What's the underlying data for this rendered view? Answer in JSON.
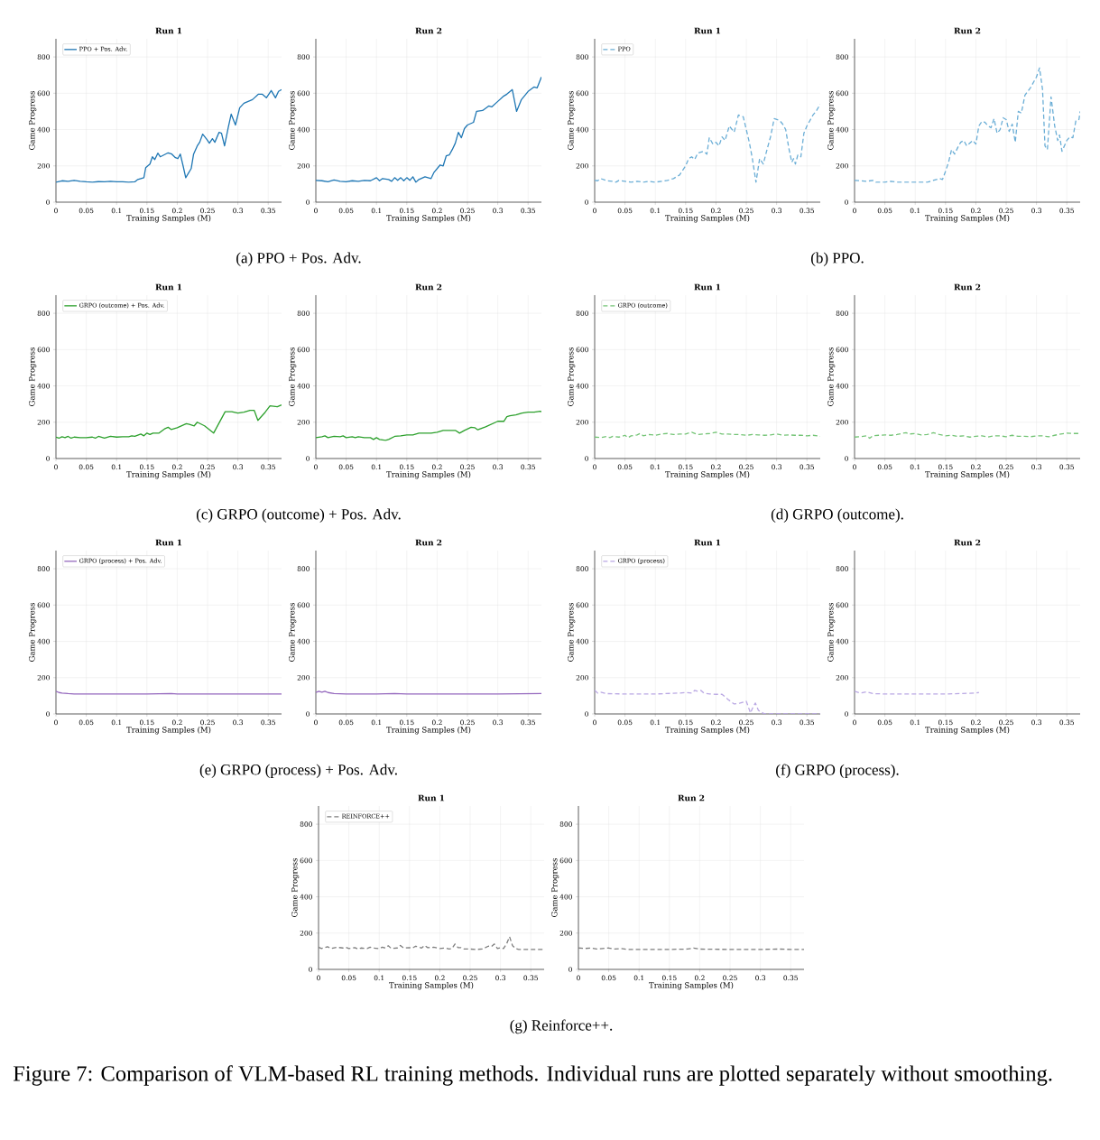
{
  "chart_data": [
    {
      "type": "line",
      "title": "Run 1",
      "xlabel": "Training Samples (M)",
      "ylabel": "Game Progress",
      "xlim": [
        0,
        0.372
      ],
      "ylim": [
        0,
        900
      ],
      "xticks": [
        0,
        0.05,
        0.1,
        0.15,
        0.2,
        0.25,
        0.3,
        0.35
      ],
      "yticks": [
        0,
        200,
        400,
        600,
        800
      ],
      "grid": true,
      "legend": "top left",
      "annotations": [
        "(a) PPO + Pos. Adv."
      ],
      "series": [
        {
          "name": "PPO + Pos. Adv.",
          "color": "#1f77b4",
          "line_style": "solid",
          "x": [
            0,
            0.01,
            0.02,
            0.03,
            0.04,
            0.05,
            0.06,
            0.07,
            0.08,
            0.09,
            0.1,
            0.11,
            0.12,
            0.13,
            0.135,
            0.14,
            0.145,
            0.148,
            0.155,
            0.159,
            0.163,
            0.168,
            0.172,
            0.185,
            0.191,
            0.197,
            0.201,
            0.205,
            0.21,
            0.214,
            0.223,
            0.227,
            0.233,
            0.237,
            0.242,
            0.249,
            0.253,
            0.258,
            0.262,
            0.269,
            0.273,
            0.278,
            0.284,
            0.289,
            0.296,
            0.303,
            0.31,
            0.324,
            0.334,
            0.34,
            0.347,
            0.355,
            0.362,
            0.367,
            0.372
          ],
          "values": [
            110,
            118,
            115,
            120,
            115,
            112,
            110,
            113,
            112,
            115,
            112,
            112,
            110,
            112,
            125,
            130,
            135,
            190,
            210,
            250,
            235,
            270,
            250,
            272,
            265,
            245,
            240,
            265,
            195,
            135,
            185,
            265,
            310,
            330,
            375,
            345,
            325,
            350,
            330,
            385,
            380,
            310,
            410,
            485,
            425,
            520,
            545,
            565,
            595,
            595,
            575,
            615,
            575,
            610,
            620
          ]
        }
      ]
    },
    {
      "type": "line",
      "title": "Run 2",
      "xlabel": "Training Samples (M)",
      "ylabel": "Game Progress",
      "xlim": [
        0,
        0.372
      ],
      "ylim": [
        0,
        900
      ],
      "xticks": [
        0,
        0.05,
        0.1,
        0.15,
        0.2,
        0.25,
        0.3,
        0.35
      ],
      "yticks": [
        0,
        200,
        400,
        600,
        800
      ],
      "grid": true,
      "series": [
        {
          "color": "#1f77b4",
          "line_style": "solid",
          "x": [
            0,
            0.01,
            0.02,
            0.03,
            0.04,
            0.05,
            0.06,
            0.07,
            0.08,
            0.09,
            0.1,
            0.105,
            0.11,
            0.12,
            0.125,
            0.13,
            0.135,
            0.14,
            0.145,
            0.15,
            0.155,
            0.16,
            0.165,
            0.17,
            0.18,
            0.19,
            0.195,
            0.2,
            0.205,
            0.21,
            0.215,
            0.22,
            0.225,
            0.23,
            0.235,
            0.24,
            0.245,
            0.25,
            0.26,
            0.265,
            0.275,
            0.285,
            0.29,
            0.3,
            0.31,
            0.315,
            0.324,
            0.331,
            0.339,
            0.35,
            0.36,
            0.365,
            0.372
          ],
          "values": [
            120,
            118,
            112,
            122,
            115,
            112,
            118,
            115,
            120,
            118,
            135,
            118,
            130,
            125,
            115,
            135,
            120,
            135,
            118,
            135,
            120,
            140,
            110,
            125,
            140,
            130,
            165,
            185,
            205,
            200,
            255,
            260,
            290,
            325,
            385,
            355,
            405,
            425,
            440,
            500,
            505,
            530,
            525,
            555,
            585,
            595,
            620,
            500,
            565,
            610,
            635,
            630,
            690
          ]
        }
      ]
    },
    {
      "type": "line",
      "title": "Run 1",
      "xlabel": "Training Samples (M)",
      "ylabel": "Game Progress",
      "xlim": [
        0,
        0.372
      ],
      "ylim": [
        0,
        900
      ],
      "xticks": [
        0,
        0.05,
        0.1,
        0.15,
        0.2,
        0.25,
        0.3,
        0.35
      ],
      "yticks": [
        0,
        200,
        400,
        600,
        800
      ],
      "grid": true,
      "legend": "top left",
      "annotations": [
        "(b) PPO."
      ],
      "series": [
        {
          "name": "PPO",
          "color": "#6baed6",
          "line_style": "dashed",
          "x": [
            0,
            0.005,
            0.01,
            0.02,
            0.03,
            0.035,
            0.04,
            0.05,
            0.06,
            0.07,
            0.08,
            0.09,
            0.1,
            0.11,
            0.12,
            0.13,
            0.14,
            0.15,
            0.155,
            0.16,
            0.165,
            0.17,
            0.18,
            0.185,
            0.189,
            0.195,
            0.2,
            0.205,
            0.21,
            0.215,
            0.222,
            0.23,
            0.237,
            0.245,
            0.25,
            0.255,
            0.26,
            0.266,
            0.272,
            0.278,
            0.285,
            0.29,
            0.296,
            0.305,
            0.31,
            0.315,
            0.32,
            0.325,
            0.328,
            0.331,
            0.335,
            0.34,
            0.345,
            0.35,
            0.355,
            0.36,
            0.365,
            0.372
          ],
          "values": [
            120,
            118,
            130,
            118,
            115,
            110,
            120,
            115,
            110,
            115,
            110,
            115,
            110,
            115,
            120,
            130,
            150,
            200,
            240,
            250,
            235,
            270,
            280,
            265,
            355,
            320,
            330,
            310,
            360,
            340,
            420,
            385,
            480,
            470,
            400,
            330,
            240,
            110,
            240,
            210,
            300,
            360,
            460,
            450,
            430,
            400,
            300,
            220,
            240,
            210,
            260,
            250,
            380,
            420,
            450,
            480,
            500,
            540
          ]
        }
      ]
    },
    {
      "type": "line",
      "title": "Run 2",
      "xlabel": "Training Samples (M)",
      "ylabel": "Game Progress",
      "xlim": [
        0,
        0.372
      ],
      "ylim": [
        0,
        900
      ],
      "xticks": [
        0,
        0.05,
        0.1,
        0.15,
        0.2,
        0.25,
        0.3,
        0.35
      ],
      "yticks": [
        0,
        200,
        400,
        600,
        800
      ],
      "grid": true,
      "series": [
        {
          "color": "#6baed6",
          "line_style": "dashed",
          "x": [
            0,
            0.01,
            0.02,
            0.03,
            0.035,
            0.05,
            0.06,
            0.07,
            0.1,
            0.12,
            0.13,
            0.14,
            0.145,
            0.15,
            0.155,
            0.16,
            0.165,
            0.17,
            0.175,
            0.18,
            0.185,
            0.195,
            0.2,
            0.205,
            0.21,
            0.215,
            0.22,
            0.225,
            0.23,
            0.235,
            0.24,
            0.245,
            0.25,
            0.255,
            0.26,
            0.265,
            0.27,
            0.275,
            0.281,
            0.29,
            0.3,
            0.305,
            0.31,
            0.314,
            0.318,
            0.324,
            0.33,
            0.335,
            0.338,
            0.342,
            0.35,
            0.355,
            0.36,
            0.365,
            0.37,
            0.372
          ],
          "values": [
            120,
            118,
            115,
            120,
            110,
            110,
            115,
            110,
            110,
            110,
            120,
            130,
            125,
            170,
            220,
            290,
            265,
            300,
            330,
            340,
            310,
            340,
            320,
            420,
            445,
            440,
            420,
            410,
            460,
            380,
            400,
            465,
            455,
            390,
            430,
            330,
            500,
            490,
            590,
            630,
            690,
            740,
            620,
            310,
            290,
            580,
            420,
            340,
            370,
            280,
            340,
            360,
            355,
            450,
            455,
            500
          ]
        }
      ]
    },
    {
      "type": "line",
      "title": "Run 1",
      "xlabel": "Training Samples (M)",
      "ylabel": "Game Progress",
      "xlim": [
        0,
        0.372
      ],
      "ylim": [
        0,
        900
      ],
      "xticks": [
        0,
        0.05,
        0.1,
        0.15,
        0.2,
        0.25,
        0.3,
        0.35
      ],
      "yticks": [
        0,
        200,
        400,
        600,
        800
      ],
      "grid": true,
      "legend": "top left",
      "annotations": [
        "(c) GRPO (outcome) + Pos. Adv."
      ],
      "series": [
        {
          "name": "GRPO (outcome) + Pos. Adv.",
          "color": "#2ca02c",
          "line_style": "solid",
          "x": [
            0,
            0.005,
            0.01,
            0.015,
            0.02,
            0.025,
            0.03,
            0.04,
            0.05,
            0.06,
            0.065,
            0.07,
            0.08,
            0.09,
            0.1,
            0.11,
            0.12,
            0.125,
            0.13,
            0.14,
            0.145,
            0.15,
            0.155,
            0.16,
            0.17,
            0.18,
            0.185,
            0.19,
            0.2,
            0.21,
            0.215,
            0.22,
            0.228,
            0.233,
            0.245,
            0.26,
            0.279,
            0.29,
            0.3,
            0.31,
            0.32,
            0.327,
            0.333,
            0.345,
            0.353,
            0.365,
            0.372
          ],
          "values": [
            118,
            112,
            120,
            115,
            122,
            112,
            118,
            115,
            115,
            118,
            112,
            122,
            112,
            122,
            118,
            120,
            120,
            125,
            122,
            135,
            125,
            140,
            132,
            140,
            140,
            165,
            172,
            160,
            170,
            185,
            192,
            188,
            180,
            200,
            180,
            140,
            258,
            258,
            250,
            255,
            265,
            265,
            210,
            255,
            290,
            285,
            295
          ]
        }
      ]
    },
    {
      "type": "line",
      "title": "Run 2",
      "xlabel": "Training Samples (M)",
      "ylabel": "Game Progress",
      "xlim": [
        0,
        0.372
      ],
      "ylim": [
        0,
        900
      ],
      "xticks": [
        0,
        0.05,
        0.1,
        0.15,
        0.2,
        0.25,
        0.3,
        0.35
      ],
      "yticks": [
        0,
        200,
        400,
        600,
        800
      ],
      "grid": true,
      "series": [
        {
          "color": "#2ca02c",
          "line_style": "solid",
          "x": [
            0,
            0.01,
            0.015,
            0.02,
            0.03,
            0.04,
            0.045,
            0.05,
            0.06,
            0.065,
            0.07,
            0.08,
            0.09,
            0.095,
            0.1,
            0.105,
            0.115,
            0.12,
            0.13,
            0.14,
            0.15,
            0.16,
            0.17,
            0.18,
            0.19,
            0.2,
            0.21,
            0.22,
            0.23,
            0.237,
            0.245,
            0.256,
            0.262,
            0.267,
            0.28,
            0.29,
            0.3,
            0.31,
            0.315,
            0.32,
            0.33,
            0.34,
            0.35,
            0.36,
            0.37,
            0.372
          ],
          "values": [
            115,
            120,
            125,
            115,
            122,
            120,
            125,
            115,
            120,
            115,
            120,
            115,
            115,
            105,
            115,
            105,
            100,
            105,
            122,
            125,
            130,
            130,
            140,
            140,
            140,
            145,
            155,
            155,
            155,
            140,
            155,
            172,
            170,
            158,
            175,
            190,
            205,
            205,
            230,
            235,
            240,
            250,
            255,
            255,
            260,
            258
          ]
        }
      ]
    },
    {
      "type": "line",
      "title": "Run 1",
      "xlabel": "Training Samples (M)",
      "ylabel": "Game Progress",
      "xlim": [
        0,
        0.372
      ],
      "ylim": [
        0,
        900
      ],
      "xticks": [
        0,
        0.05,
        0.1,
        0.15,
        0.2,
        0.25,
        0.3,
        0.35
      ],
      "yticks": [
        0,
        200,
        400,
        600,
        800
      ],
      "grid": true,
      "legend": "top left",
      "annotations": [
        "(d) GRPO (outcome)."
      ],
      "series": [
        {
          "name": "GRPO (outcome)",
          "color": "#74c476",
          "line_style": "dashed",
          "x": [
            0,
            0.01,
            0.02,
            0.025,
            0.03,
            0.04,
            0.05,
            0.055,
            0.06,
            0.07,
            0.075,
            0.08,
            0.09,
            0.1,
            0.11,
            0.12,
            0.13,
            0.14,
            0.15,
            0.16,
            0.17,
            0.18,
            0.19,
            0.2,
            0.21,
            0.22,
            0.23,
            0.24,
            0.25,
            0.26,
            0.27,
            0.28,
            0.29,
            0.3,
            0.31,
            0.32,
            0.33,
            0.34,
            0.35,
            0.36,
            0.372
          ],
          "values": [
            118,
            115,
            122,
            115,
            122,
            118,
            128,
            115,
            125,
            130,
            138,
            125,
            132,
            128,
            135,
            138,
            132,
            135,
            135,
            145,
            132,
            135,
            138,
            145,
            135,
            135,
            132,
            132,
            128,
            132,
            130,
            128,
            130,
            135,
            128,
            130,
            128,
            128,
            125,
            128,
            122
          ]
        }
      ]
    },
    {
      "type": "line",
      "title": "Run 2",
      "xlabel": "Training Samples (M)",
      "ylabel": "Game Progress",
      "xlim": [
        0,
        0.372
      ],
      "ylim": [
        0,
        900
      ],
      "xticks": [
        0,
        0.05,
        0.1,
        0.15,
        0.2,
        0.25,
        0.3,
        0.35
      ],
      "yticks": [
        0,
        200,
        400,
        600,
        800
      ],
      "grid": true,
      "series": [
        {
          "color": "#74c476",
          "line_style": "dashed",
          "x": [
            0,
            0.01,
            0.02,
            0.025,
            0.03,
            0.04,
            0.05,
            0.06,
            0.07,
            0.08,
            0.085,
            0.09,
            0.1,
            0.11,
            0.12,
            0.13,
            0.14,
            0.15,
            0.16,
            0.17,
            0.18,
            0.19,
            0.2,
            0.21,
            0.22,
            0.23,
            0.24,
            0.25,
            0.26,
            0.27,
            0.28,
            0.29,
            0.3,
            0.31,
            0.32,
            0.33,
            0.34,
            0.35,
            0.36,
            0.372
          ],
          "values": [
            118,
            120,
            125,
            112,
            125,
            128,
            130,
            128,
            132,
            140,
            142,
            135,
            138,
            130,
            132,
            142,
            132,
            125,
            128,
            122,
            125,
            118,
            122,
            125,
            118,
            125,
            125,
            120,
            128,
            122,
            122,
            120,
            125,
            125,
            120,
            128,
            135,
            140,
            138,
            138
          ]
        }
      ]
    },
    {
      "type": "line",
      "title": "Run 1",
      "xlabel": "Training Samples (M)",
      "ylabel": "Game Progress",
      "xlim": [
        0,
        0.372
      ],
      "ylim": [
        0,
        900
      ],
      "xticks": [
        0,
        0.05,
        0.1,
        0.15,
        0.2,
        0.25,
        0.3,
        0.35
      ],
      "yticks": [
        0,
        200,
        400,
        600,
        800
      ],
      "grid": true,
      "legend": "top left",
      "annotations": [
        "(e) GRPO (process) + Pos. Adv."
      ],
      "series": [
        {
          "name": "GRPO (process) + Pos. Adv.",
          "color": "#9467bd",
          "line_style": "solid",
          "x": [
            0,
            0.005,
            0.01,
            0.02,
            0.03,
            0.05,
            0.1,
            0.15,
            0.19,
            0.2,
            0.25,
            0.3,
            0.35,
            0.372
          ],
          "values": [
            125,
            118,
            115,
            112,
            110,
            110,
            110,
            110,
            112,
            110,
            110,
            110,
            110,
            110
          ]
        }
      ]
    },
    {
      "type": "line",
      "title": "Run 2",
      "xlabel": "Training Samples (M)",
      "ylabel": "Game Progress",
      "xlim": [
        0,
        0.372
      ],
      "ylim": [
        0,
        900
      ],
      "xticks": [
        0,
        0.05,
        0.1,
        0.15,
        0.2,
        0.25,
        0.3,
        0.35
      ],
      "yticks": [
        0,
        200,
        400,
        600,
        800
      ],
      "grid": true,
      "series": [
        {
          "color": "#9467bd",
          "line_style": "solid",
          "x": [
            0,
            0.005,
            0.01,
            0.015,
            0.02,
            0.03,
            0.05,
            0.1,
            0.13,
            0.15,
            0.2,
            0.3,
            0.372
          ],
          "values": [
            118,
            125,
            120,
            125,
            118,
            112,
            110,
            110,
            112,
            110,
            110,
            110,
            112
          ]
        }
      ]
    },
    {
      "type": "line",
      "title": "Run 1",
      "xlabel": "Training Samples (M)",
      "ylabel": "Game Progress",
      "xlim": [
        0,
        0.372
      ],
      "ylim": [
        0,
        900
      ],
      "xticks": [
        0,
        0.05,
        0.1,
        0.15,
        0.2,
        0.25,
        0.3,
        0.35
      ],
      "yticks": [
        0,
        200,
        400,
        600,
        800
      ],
      "grid": true,
      "legend": "top left",
      "annotations": [
        "(f) GRPO (process)."
      ],
      "series": [
        {
          "name": "GRPO (process)",
          "color": "#b9a7e3",
          "line_style": "dashed",
          "x": [
            0,
            0.005,
            0.01,
            0.02,
            0.05,
            0.1,
            0.14,
            0.15,
            0.16,
            0.165,
            0.17,
            0.175,
            0.18,
            0.19,
            0.2,
            0.21,
            0.22,
            0.23,
            0.24,
            0.25,
            0.257,
            0.26,
            0.265,
            0.27,
            0.28,
            0.3,
            0.35,
            0.372
          ],
          "values": [
            130,
            115,
            120,
            112,
            110,
            110,
            115,
            118,
            115,
            130,
            125,
            130,
            115,
            110,
            108,
            108,
            80,
            55,
            60,
            70,
            5,
            30,
            60,
            20,
            0,
            0,
            0,
            0
          ]
        }
      ]
    },
    {
      "type": "line",
      "title": "Run 2",
      "xlabel": "Training Samples (M)",
      "ylabel": "Game Progress",
      "xlim": [
        0,
        0.372
      ],
      "ylim": [
        0,
        900
      ],
      "xticks": [
        0,
        0.05,
        0.1,
        0.15,
        0.2,
        0.25,
        0.3,
        0.35
      ],
      "yticks": [
        0,
        200,
        400,
        600,
        800
      ],
      "grid": true,
      "series": [
        {
          "color": "#b9a7e3",
          "line_style": "dashed",
          "x": [
            0,
            0.01,
            0.02,
            0.03,
            0.05,
            0.1,
            0.15,
            0.2,
            0.205
          ],
          "values": [
            125,
            115,
            122,
            112,
            110,
            110,
            110,
            115,
            118
          ]
        }
      ]
    },
    {
      "type": "line",
      "title": "Run 1",
      "xlabel": "Training Samples (M)",
      "ylabel": "Game Progress",
      "xlim": [
        0,
        0.372
      ],
      "ylim": [
        0,
        900
      ],
      "xticks": [
        0,
        0.05,
        0.1,
        0.15,
        0.2,
        0.25,
        0.3,
        0.35
      ],
      "yticks": [
        0,
        200,
        400,
        600,
        800
      ],
      "grid": true,
      "legend": "top left",
      "annotations": [
        "(g) Reinforce++.",
        "Figure 7: Comparison of VLM-based RL training methods. Individual runs are plotted separately without smoothing."
      ],
      "series": [
        {
          "name": "REINFORCE++",
          "color": "#7f7f7f",
          "line_style": "dashed",
          "x": [
            0,
            0.005,
            0.01,
            0.015,
            0.02,
            0.03,
            0.04,
            0.045,
            0.05,
            0.06,
            0.065,
            0.07,
            0.08,
            0.085,
            0.09,
            0.1,
            0.105,
            0.11,
            0.115,
            0.12,
            0.13,
            0.135,
            0.14,
            0.15,
            0.155,
            0.16,
            0.17,
            0.175,
            0.18,
            0.19,
            0.2,
            0.21,
            0.215,
            0.22,
            0.225,
            0.23,
            0.235,
            0.24,
            0.25,
            0.26,
            0.27,
            0.28,
            0.285,
            0.29,
            0.295,
            0.3,
            0.305,
            0.31,
            0.315,
            0.32,
            0.325,
            0.33,
            0.35,
            0.372
          ],
          "values": [
            122,
            115,
            120,
            125,
            115,
            122,
            118,
            122,
            115,
            120,
            112,
            118,
            115,
            122,
            118,
            115,
            122,
            118,
            130,
            115,
            118,
            132,
            118,
            120,
            118,
            128,
            118,
            132,
            120,
            122,
            115,
            118,
            112,
            115,
            140,
            120,
            120,
            112,
            112,
            110,
            112,
            128,
            125,
            140,
            115,
            120,
            115,
            140,
            180,
            130,
            115,
            110,
            110,
            110
          ]
        }
      ]
    },
    {
      "type": "line",
      "title": "Run 2",
      "xlabel": "Training Samples (M)",
      "ylabel": "Game Progress",
      "xlim": [
        0,
        0.372
      ],
      "ylim": [
        0,
        900
      ],
      "xticks": [
        0,
        0.05,
        0.1,
        0.15,
        0.2,
        0.25,
        0.3,
        0.35
      ],
      "yticks": [
        0,
        200,
        400,
        600,
        800
      ],
      "grid": true,
      "series": [
        {
          "color": "#7f7f7f",
          "line_style": "dashed",
          "x": [
            0,
            0.01,
            0.02,
            0.03,
            0.04,
            0.05,
            0.06,
            0.07,
            0.08,
            0.1,
            0.15,
            0.18,
            0.19,
            0.2,
            0.25,
            0.3,
            0.33,
            0.35,
            0.372
          ],
          "values": [
            118,
            115,
            118,
            112,
            115,
            118,
            112,
            115,
            110,
            110,
            110,
            112,
            118,
            112,
            110,
            110,
            112,
            110,
            110
          ]
        }
      ]
    }
  ]
}
